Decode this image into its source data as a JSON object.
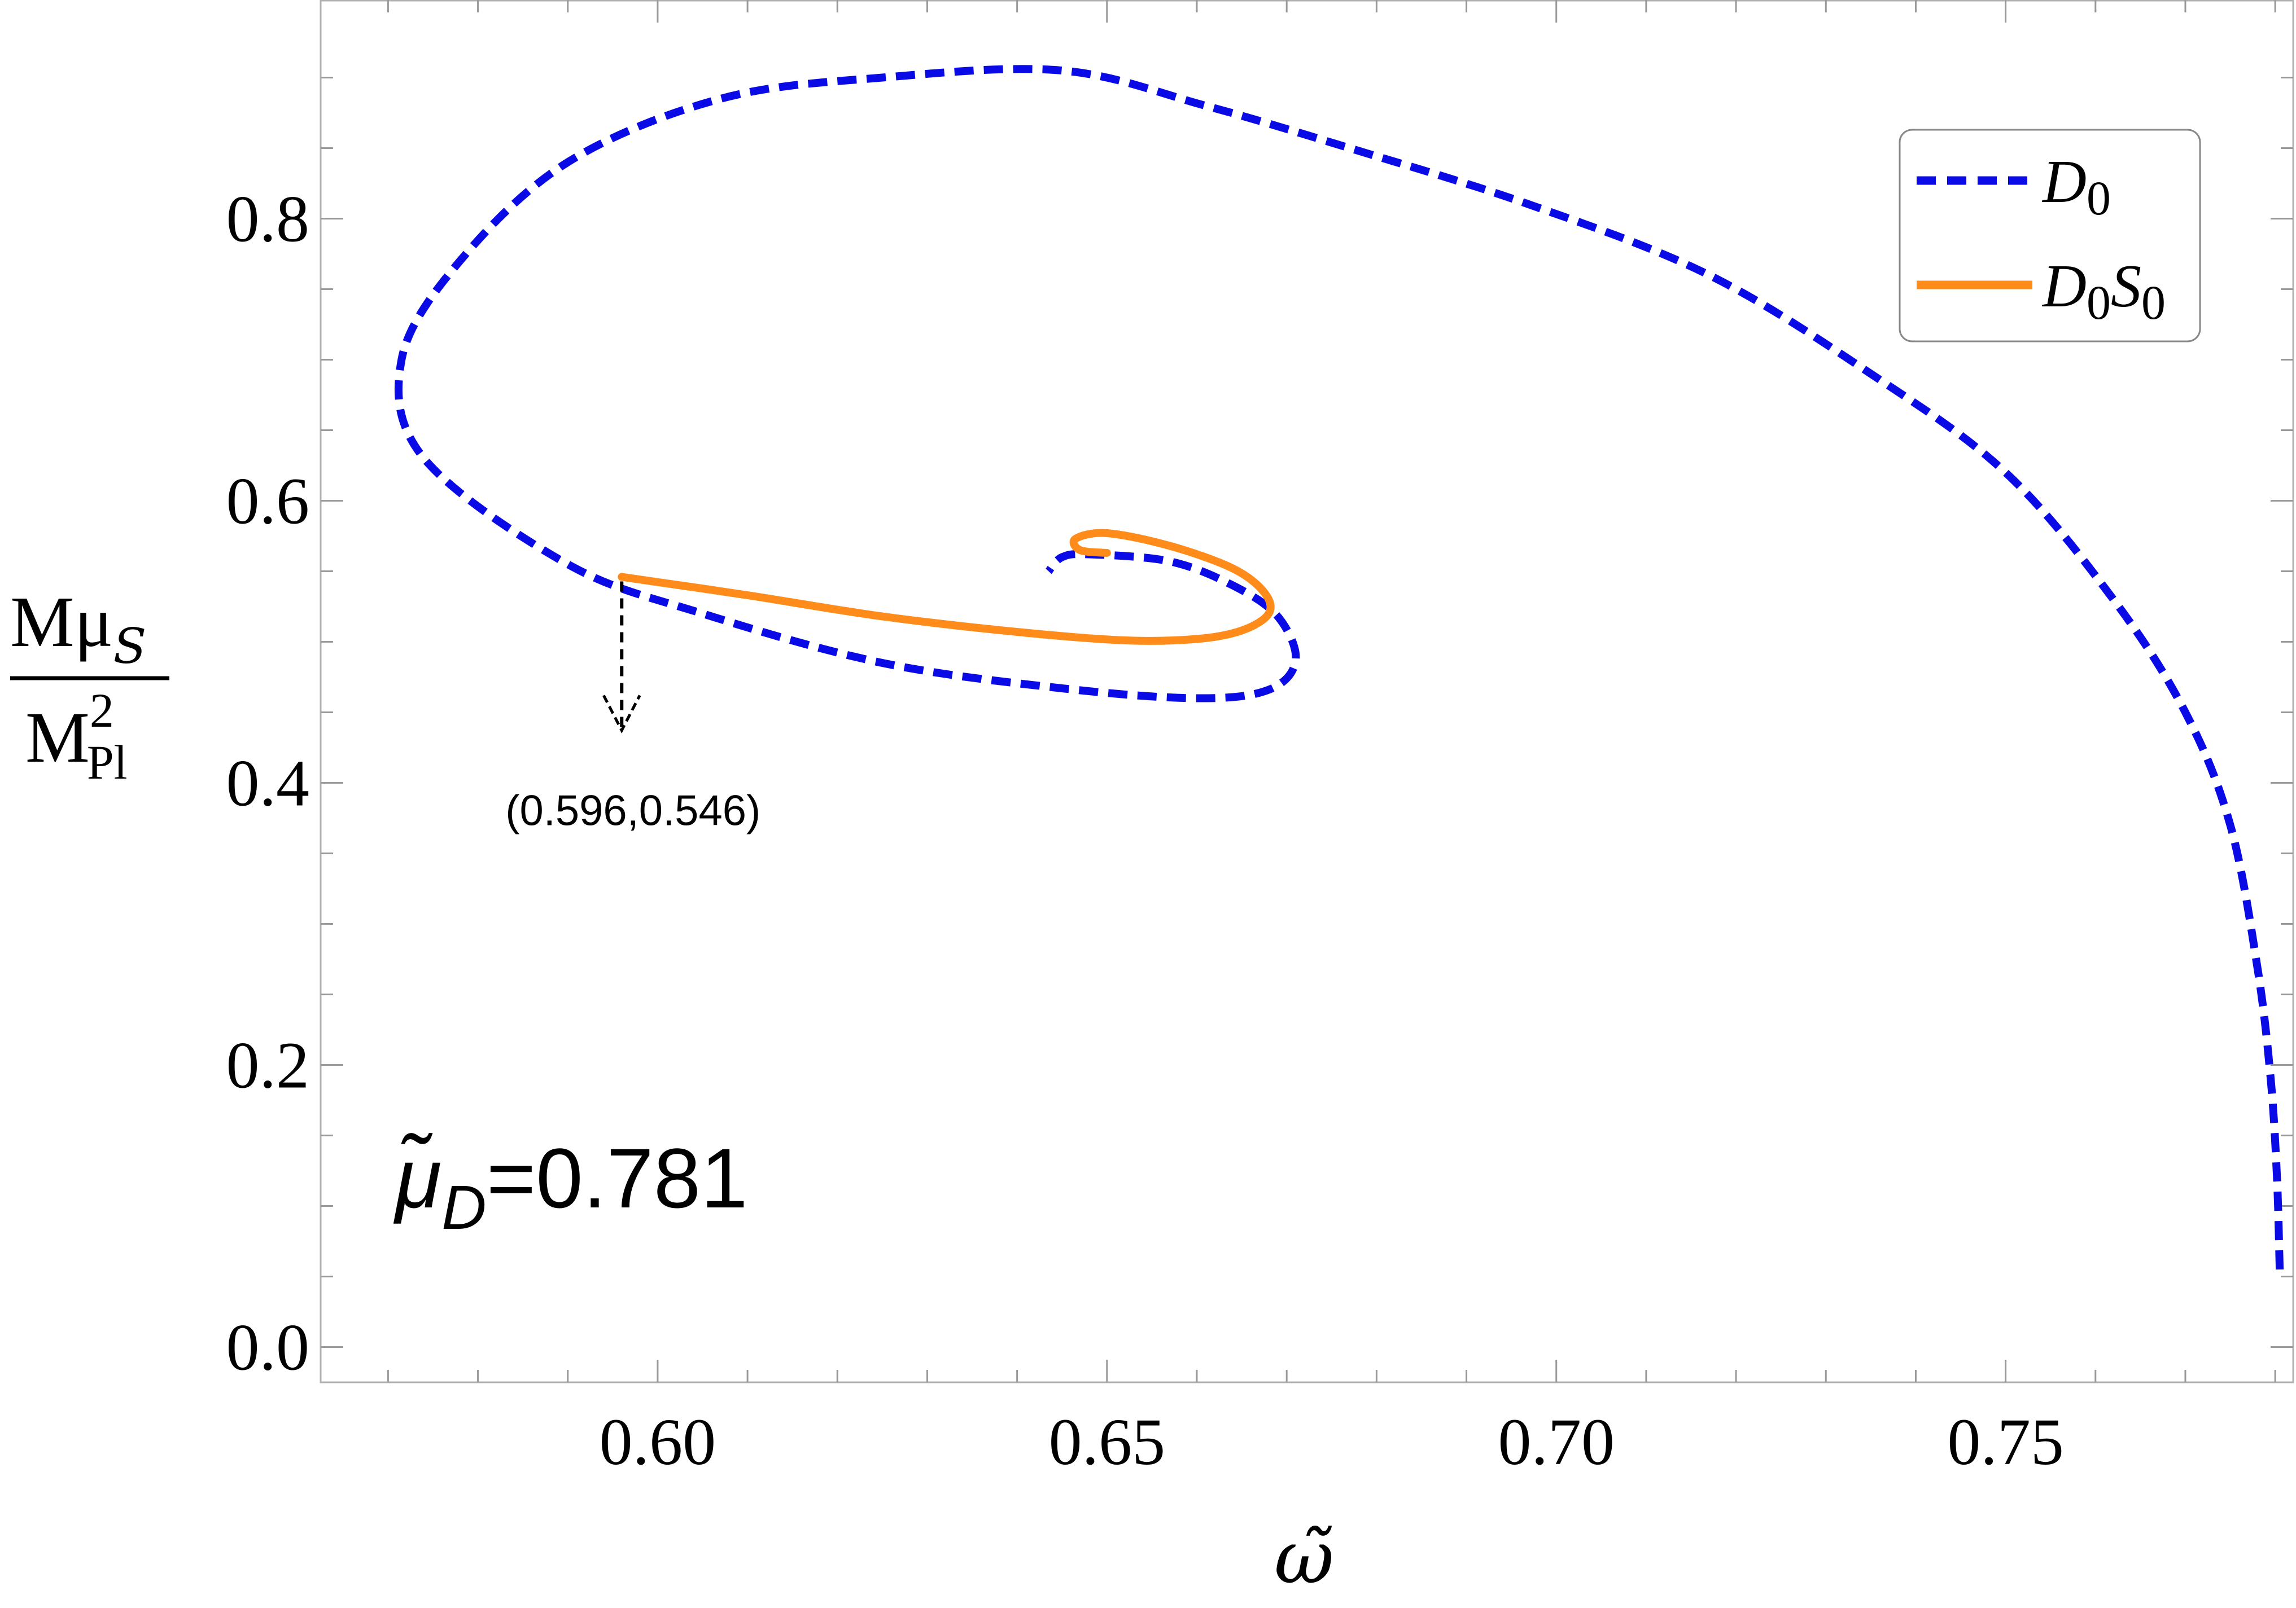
{
  "chart_data": {
    "type": "line",
    "title": "",
    "xlabel": "ω̃",
    "ylabel": {
      "numerator": "Mμ",
      "numerator_sub": "S",
      "denominator": "M",
      "denominator_sup": "2",
      "denominator_sub": "Pl"
    },
    "xlim": [
      0.5625,
      0.782
    ],
    "ylim": [
      -0.025,
      0.955
    ],
    "x_ticks": [
      0.6,
      0.65,
      0.7,
      0.75
    ],
    "x_tick_labels": [
      "0.60",
      "0.65",
      "0.70",
      "0.75"
    ],
    "y_ticks": [
      0.0,
      0.2,
      0.4,
      0.6,
      0.8
    ],
    "y_tick_labels": [
      "0.0",
      "0.2",
      "0.4",
      "0.6",
      "0.8"
    ],
    "grid": false,
    "legend_position": "top-right",
    "colors": {
      "D0": "#0a0ae6",
      "D0S0": "#ff8c1a",
      "annotation": "#000000"
    },
    "series": [
      {
        "name": "D0",
        "sub": "0",
        "style": "dashed",
        "x": [
          0.7805,
          0.7802,
          0.7795,
          0.778,
          0.775,
          0.77,
          0.762,
          0.75,
          0.735,
          0.717,
          0.697,
          0.677,
          0.661,
          0.645,
          0.625,
          0.607,
          0.59,
          0.578,
          0.5715,
          0.574,
          0.59,
          0.605,
          0.625,
          0.645,
          0.66,
          0.668,
          0.671,
          0.669,
          0.664,
          0.657,
          0.648,
          0.645,
          0.6435
        ],
        "y": [
          0.055,
          0.12,
          0.19,
          0.27,
          0.37,
          0.45,
          0.53,
          0.62,
          0.69,
          0.76,
          0.81,
          0.85,
          0.88,
          0.905,
          0.9,
          0.885,
          0.84,
          0.77,
          0.7,
          0.63,
          0.555,
          0.52,
          0.485,
          0.467,
          0.46,
          0.466,
          0.487,
          0.518,
          0.54,
          0.557,
          0.562,
          0.56,
          0.55
        ]
      },
      {
        "name": "D0S0",
        "sub": "0",
        "style": "solid",
        "x": [
          0.596,
          0.61,
          0.625,
          0.64,
          0.652,
          0.66,
          0.665,
          0.668,
          0.6675,
          0.664,
          0.657,
          0.65,
          0.6465,
          0.647,
          0.65
        ],
        "y": [
          0.546,
          0.533,
          0.518,
          0.507,
          0.501,
          0.502,
          0.508,
          0.52,
          0.535,
          0.552,
          0.568,
          0.577,
          0.573,
          0.565,
          0.563
        ]
      }
    ],
    "annotations": {
      "point_label": "(0.596,0.546)",
      "arrow_from": [
        0.596,
        0.546
      ],
      "arrow_to": [
        0.596,
        0.438
      ],
      "param_symbol": "μ̃",
      "param_sub": "D",
      "param_text": "=0.781"
    }
  }
}
